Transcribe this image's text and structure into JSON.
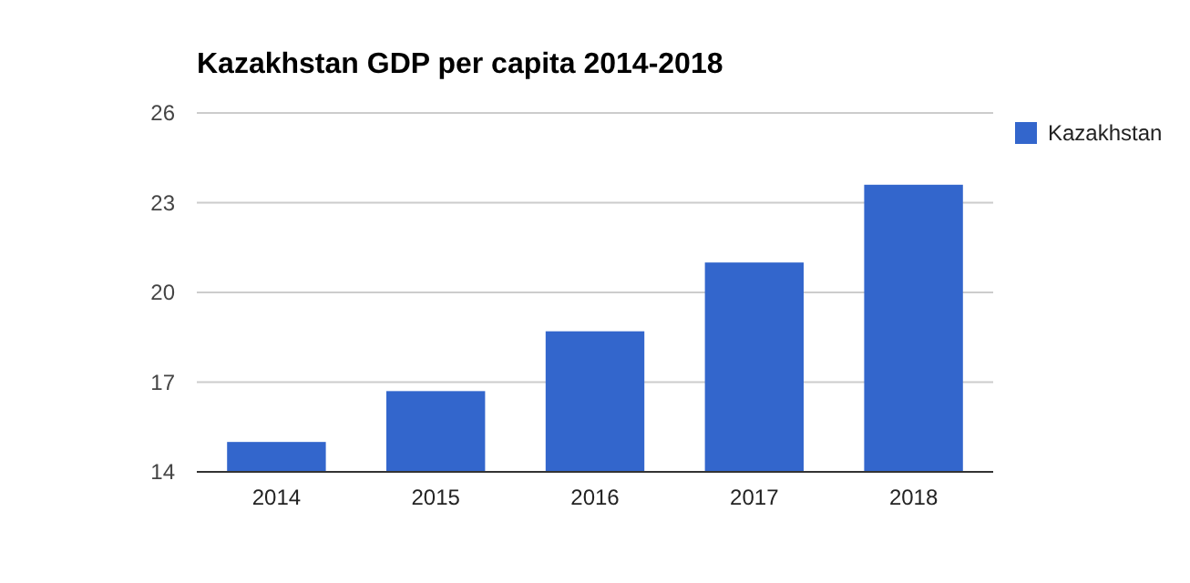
{
  "chart_data": {
    "type": "bar",
    "title": "Kazakhstan GDP per capita 2014-2018",
    "categories": [
      "2014",
      "2015",
      "2016",
      "2017",
      "2018"
    ],
    "series": [
      {
        "name": "Kazakhstan",
        "color": "#3366cc",
        "values": [
          15.0,
          16.7,
          18.7,
          21.0,
          23.6
        ]
      }
    ],
    "ylim": [
      14,
      26
    ],
    "yticks": [
      14,
      17,
      20,
      23,
      26
    ],
    "grid": "y",
    "legend": "right"
  }
}
